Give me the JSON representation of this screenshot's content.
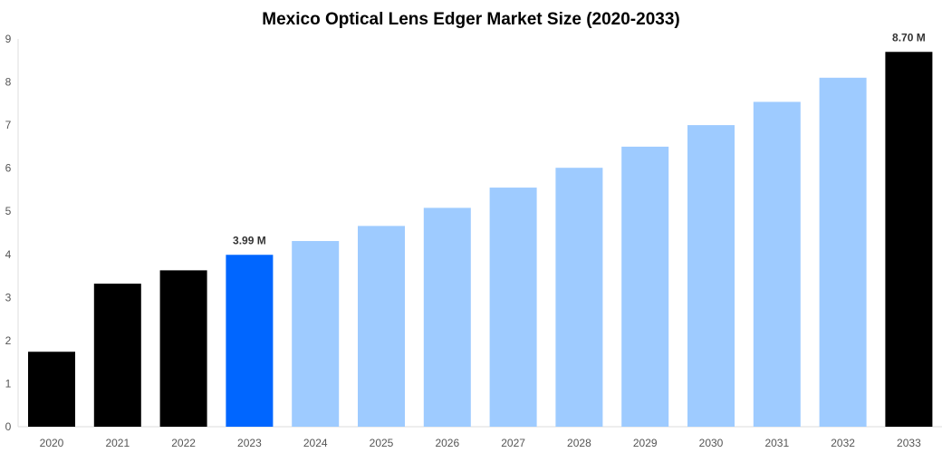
{
  "chart_data": {
    "type": "bar",
    "title": "Mexico Optical Lens Edger Market Size (2020-2033)",
    "xlabel": "",
    "ylabel": "",
    "ylim": [
      0,
      9
    ],
    "yticks": [
      "0",
      "1",
      "2",
      "3",
      "4",
      "5",
      "6",
      "7",
      "8",
      "9"
    ],
    "grid": false,
    "categories": [
      "2020",
      "2021",
      "2022",
      "2023",
      "2024",
      "2025",
      "2026",
      "2027",
      "2028",
      "2029",
      "2030",
      "2031",
      "2032",
      "2033"
    ],
    "values": [
      1.74,
      3.32,
      3.63,
      3.99,
      4.31,
      4.66,
      5.08,
      5.55,
      6.01,
      6.5,
      7.0,
      7.54,
      8.1,
      8.7
    ],
    "colors": [
      "#000000",
      "#000000",
      "#000000",
      "#0066ff",
      "#9ecbff",
      "#9ecbff",
      "#9ecbff",
      "#9ecbff",
      "#9ecbff",
      "#9ecbff",
      "#9ecbff",
      "#9ecbff",
      "#9ecbff",
      "#000000"
    ],
    "data_labels": {
      "3": "3.99 M",
      "13": "8.70 M"
    }
  }
}
